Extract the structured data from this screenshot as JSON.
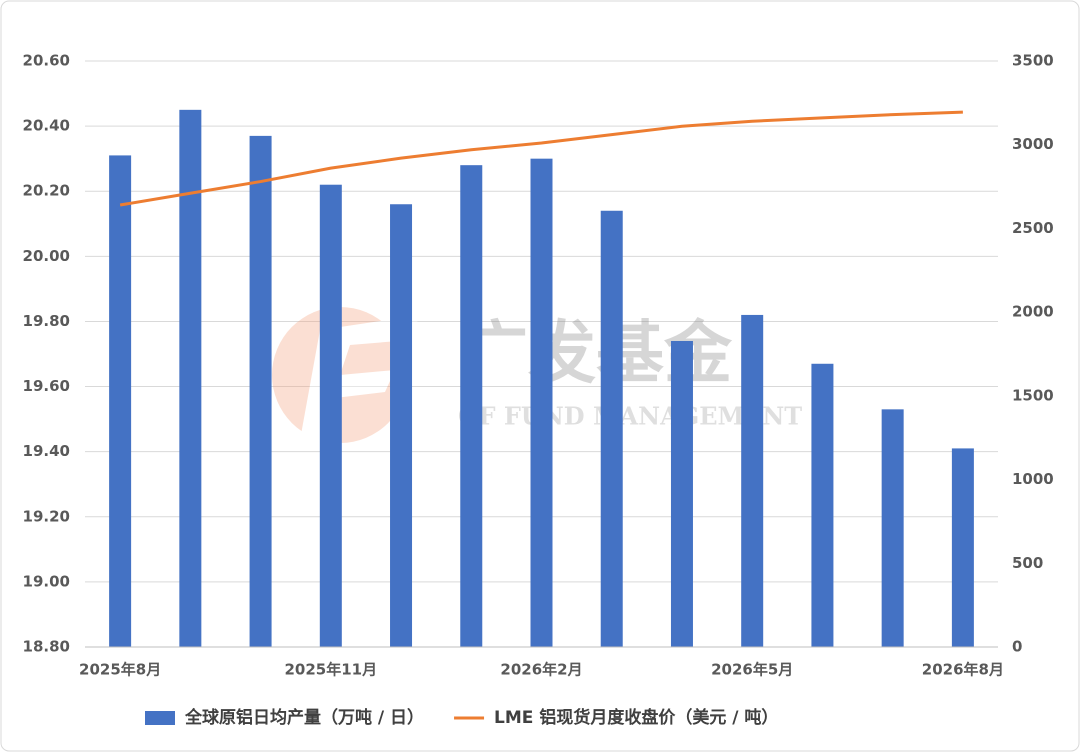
{
  "chart_data": {
    "type": "bar",
    "categories": [
      "2025年8月",
      null,
      null,
      "2025年11月",
      null,
      null,
      "2026年2月",
      null,
      null,
      "2026年5月",
      null,
      null,
      "2026年8月"
    ],
    "series": [
      {
        "name": "全球原铝日均产量（万吨 / 日）",
        "type": "bar",
        "color": "#4472c4",
        "values": [
          20.31,
          20.45,
          20.37,
          20.22,
          20.16,
          20.28,
          20.3,
          20.14,
          19.74,
          19.82,
          19.67,
          19.53,
          19.41
        ]
      },
      {
        "name": "LME 铝现货月度收盘价（美元 / 吨）",
        "type": "line",
        "axis": "y2",
        "color": "#ed7d31",
        "values": [
          2640,
          2710,
          2780,
          2860,
          2920,
          2970,
          3010,
          3060,
          3110,
          3140,
          3160,
          3180,
          3195
        ]
      }
    ],
    "ylim": [
      18.8,
      20.6
    ],
    "yticks": [
      {
        "value": 18.8,
        "label": "18.80"
      },
      {
        "value": 19.0,
        "label": "19.00"
      },
      {
        "value": 19.2,
        "label": "19.20"
      },
      {
        "value": 19.4,
        "label": "19.40"
      },
      {
        "value": 19.6,
        "label": "19.60"
      },
      {
        "value": 19.8,
        "label": "19.80"
      },
      {
        "value": 20.0,
        "label": "20.00"
      },
      {
        "value": 20.2,
        "label": "20.20"
      },
      {
        "value": 20.4,
        "label": "20.40"
      },
      {
        "value": 20.6,
        "label": "20.60"
      }
    ],
    "y2lim": [
      0,
      3500
    ],
    "y2ticks": [
      0,
      500,
      1000,
      1500,
      2000,
      2500,
      3000,
      3500
    ],
    "grid": true,
    "legend": "bottom",
    "watermark": {
      "name": "广发基金",
      "subtitle": "GF FUND MANAGEMENT"
    }
  }
}
